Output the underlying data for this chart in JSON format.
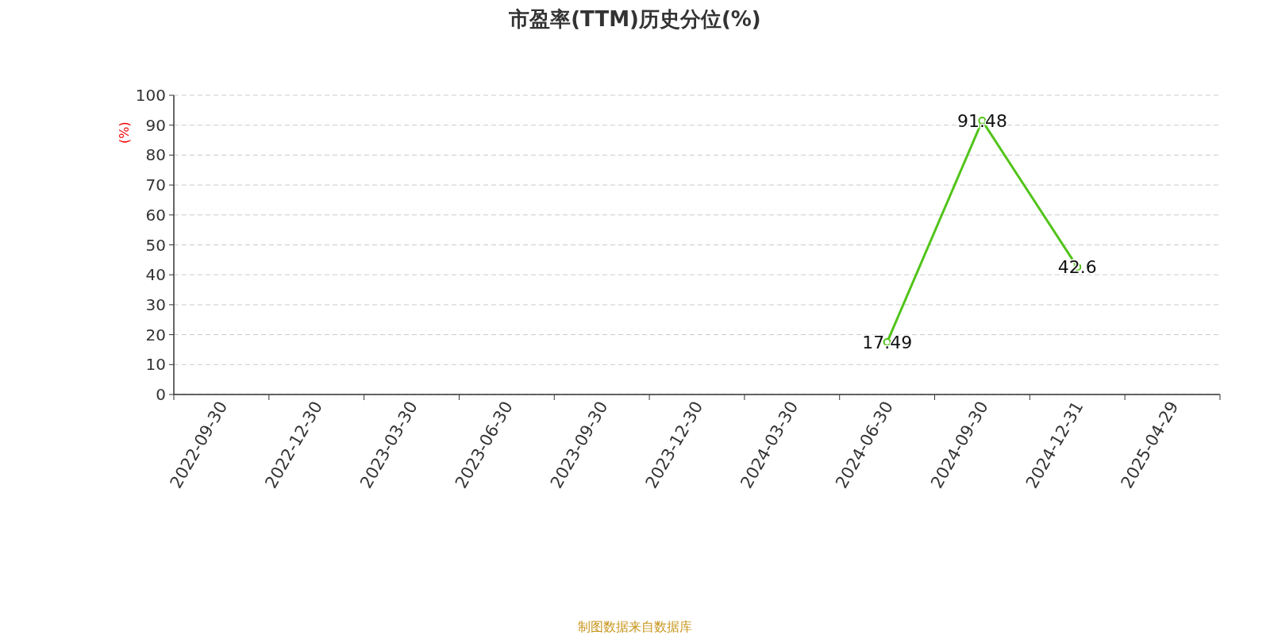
{
  "chart_data": {
    "type": "line",
    "title": "市盈率(TTM)历史分位(%)",
    "ylabel": "(%)",
    "annotations": [
      "制图数据来自数据库"
    ],
    "categories": [
      "2022-09-30",
      "2022-12-30",
      "2023-03-30",
      "2023-06-30",
      "2023-09-30",
      "2023-12-30",
      "2024-03-30",
      "2024-06-30",
      "2024-09-30",
      "2024-12-31",
      "2025-04-29"
    ],
    "series": [
      {
        "color": "#52c41a",
        "values": [
          null,
          null,
          null,
          null,
          null,
          null,
          null,
          17.49,
          91.48,
          42.6,
          null
        ]
      }
    ],
    "ylim": [
      0,
      100
    ],
    "yticks": [
      0,
      10,
      20,
      30,
      40,
      50,
      60,
      70,
      80,
      90,
      100
    ],
    "grid": "y",
    "data_labels": true,
    "marker": "circle"
  }
}
